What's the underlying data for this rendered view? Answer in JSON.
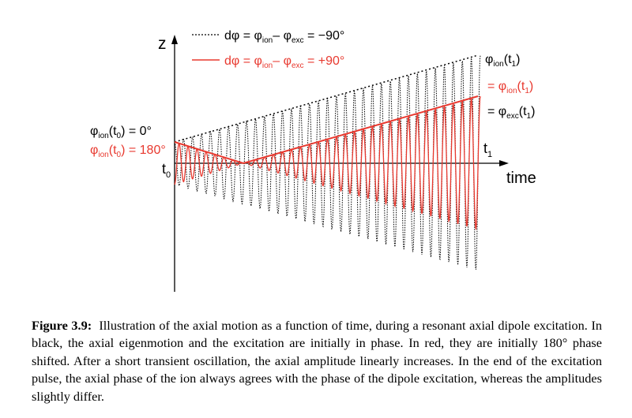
{
  "figure": {
    "axis_y_label": "z",
    "axis_x_label": "time",
    "t0_label": {
      "base": "t",
      "sub": "0"
    },
    "t1_label": {
      "base": "t",
      "sub": "1"
    },
    "legend": [
      {
        "style": "dotted",
        "color": "#000000",
        "pre": "dφ = φ",
        "sub1": "ion",
        "mid": "– φ",
        "sub2": "exc",
        "post": " = −90°"
      },
      {
        "style": "solid",
        "color": "#e8392f",
        "pre": "dφ = φ",
        "sub1": "ion",
        "mid": "– φ",
        "sub2": "exc",
        "post": " = +90°"
      }
    ],
    "left_labels": {
      "black": {
        "phi": "φ",
        "sub": "ion",
        "arg": "(t",
        "argsub": "0",
        "post": ") = 0°"
      },
      "red": {
        "phi": "φ",
        "sub": "ion",
        "arg": "(t",
        "argsub": "0",
        "post": ") = 180°"
      }
    },
    "right_labels": {
      "black_top": {
        "phi": "φ",
        "sub": "ion",
        "arg": "(t",
        "argsub": "1",
        "post": ")"
      },
      "red_mid": {
        "pre": "= φ",
        "sub": "ion",
        "arg": "(t",
        "argsub": "1",
        "post": ")"
      },
      "black_bot": {
        "pre": "= φ",
        "sub": "exc",
        "arg": "(t",
        "argsub": "1",
        "post": ")"
      }
    },
    "colors": {
      "red": "#e8392f",
      "black": "#000000"
    }
  },
  "caption": {
    "label": "Figure 3.9:",
    "text": "Illustration of the axial motion as a function of time, during a resonant axial dipole excitation. In black, the axial eigenmotion and the excitation are initially in phase. In red, they are initially 180° phase shifted. After a short transient oscillation, the axial amplitude linearly increases. In the end of the excitation pulse, the axial phase of the ion always agrees with the phase of the dipole excitation, whereas the amplitudes slightly differ."
  }
}
